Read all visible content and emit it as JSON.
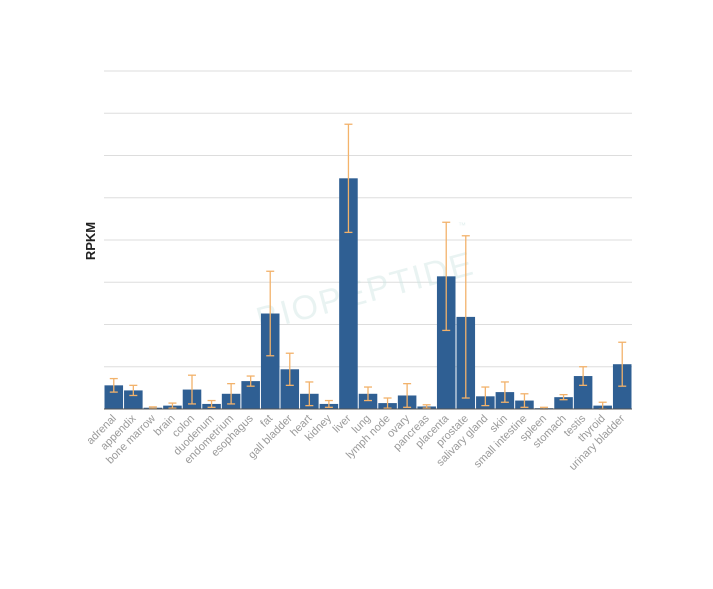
{
  "chart_data": {
    "type": "bar",
    "ylabel": "RPKM",
    "xlabel": "",
    "title": "",
    "ylim": [
      0,
      40
    ],
    "grid": true,
    "watermark": "BIOPEPTIDE",
    "colors": {
      "bar": "#2f5f93",
      "error": "#f2b26b",
      "grid": "#dddddd",
      "axis": "#555555"
    },
    "categories": [
      "adrenal",
      "appendix",
      "bone marrow",
      "brain",
      "colon",
      "duodenum",
      "endometrium",
      "esophagus",
      "fat",
      "gall bladder",
      "heart",
      "kidney",
      "liver",
      "lung",
      "lymph node",
      "ovary",
      "pancreas",
      "placenta",
      "prostate",
      "salivary gland",
      "skin",
      "small intestine",
      "spleen",
      "stomach",
      "testis",
      "thyroid",
      "urinary bladder"
    ],
    "values": [
      2.8,
      2.2,
      0.15,
      0.4,
      2.3,
      0.6,
      1.8,
      3.3,
      11.3,
      4.7,
      1.8,
      0.6,
      27.3,
      1.8,
      0.7,
      1.6,
      0.3,
      15.7,
      10.9,
      1.5,
      2.0,
      1.0,
      0.1,
      1.4,
      3.9,
      0.4,
      5.3
    ],
    "errors": [
      0.8,
      0.6,
      0.1,
      0.3,
      1.7,
      0.4,
      1.2,
      0.6,
      5.0,
      1.9,
      1.4,
      0.4,
      6.4,
      0.8,
      0.6,
      1.4,
      0.2,
      6.4,
      9.6,
      1.1,
      1.2,
      0.8,
      0.1,
      0.3,
      1.1,
      0.4,
      2.6
    ]
  }
}
